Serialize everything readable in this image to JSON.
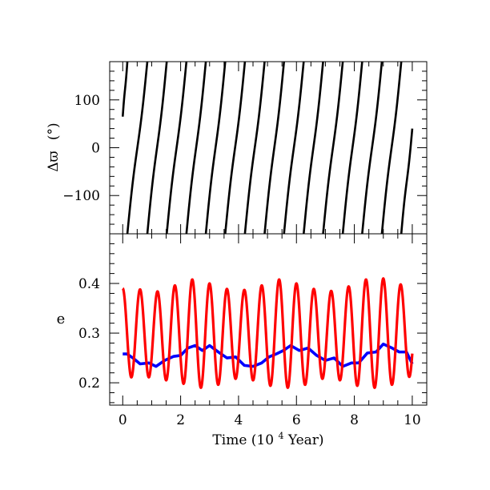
{
  "chart_data": [
    {
      "type": "line",
      "panel": "top",
      "ylabel": "Δϖ (°)",
      "ylabel_main": "Δϖ",
      "ylabel_unit": "(°)",
      "xlabel": "",
      "xlim": [
        -0.45,
        10.5
      ],
      "ylim": [
        -180,
        180
      ],
      "yticks": [
        -100,
        0,
        100
      ],
      "ytick_labels": [
        "−100",
        "0",
        "100"
      ],
      "grid": false,
      "line_color": "#000000",
      "series": [
        {
          "segments": [
            {
              "x": [
                0.0,
                0.16
              ],
              "y": [
                65,
                180
              ]
            },
            {
              "x": [
                0.16,
                0.85
              ],
              "y": [
                -180,
                180
              ]
            },
            {
              "x": [
                0.85,
                1.52
              ],
              "y": [
                -180,
                180
              ]
            },
            {
              "x": [
                1.52,
                2.2
              ],
              "y": [
                -180,
                180
              ]
            },
            {
              "x": [
                2.2,
                2.87
              ],
              "y": [
                -180,
                180
              ]
            },
            {
              "x": [
                2.87,
                3.54
              ],
              "y": [
                -180,
                180
              ]
            },
            {
              "x": [
                3.54,
                4.22
              ],
              "y": [
                -180,
                180
              ]
            },
            {
              "x": [
                4.22,
                4.9
              ],
              "y": [
                -180,
                180
              ]
            },
            {
              "x": [
                4.9,
                5.57
              ],
              "y": [
                -180,
                180
              ]
            },
            {
              "x": [
                5.57,
                6.25
              ],
              "y": [
                -180,
                180
              ]
            },
            {
              "x": [
                6.25,
                6.92
              ],
              "y": [
                -180,
                180
              ]
            },
            {
              "x": [
                6.92,
                7.6
              ],
              "y": [
                -180,
                180
              ]
            },
            {
              "x": [
                7.6,
                8.27
              ],
              "y": [
                -180,
                180
              ]
            },
            {
              "x": [
                8.27,
                8.95
              ],
              "y": [
                -180,
                180
              ]
            },
            {
              "x": [
                8.95,
                9.62
              ],
              "y": [
                -180,
                180
              ]
            },
            {
              "x": [
                9.62,
                10.0
              ],
              "y": [
                -180,
                40
              ]
            }
          ]
        }
      ]
    },
    {
      "type": "line",
      "panel": "bottom",
      "ylabel": "e",
      "xlabel": "Time (10⁴ Year)",
      "xlabel_prefix": "Time (10",
      "xlabel_exp": "4",
      "xlabel_suffix": " Year)",
      "xlim": [
        -0.45,
        10.5
      ],
      "ylim": [
        0.155,
        0.5
      ],
      "xticks": [
        0,
        2,
        4,
        6,
        8,
        10
      ],
      "xtick_labels": [
        "0",
        "2",
        "4",
        "6",
        "8",
        "10"
      ],
      "yticks": [
        0.2,
        0.3,
        0.4
      ],
      "ytick_labels": [
        "0.2",
        "0.3",
        "0.4"
      ],
      "grid": false,
      "series": [
        {
          "color": "#ff0000",
          "model": "oscillation",
          "period": 0.6,
          "phase": 0.25,
          "x_start": 0,
          "x_end": 10,
          "envelope_x": [
            0.0,
            0.5,
            1.0,
            1.5,
            2.0,
            2.5,
            3.0,
            3.5,
            4.0,
            4.5,
            5.0,
            5.5,
            6.0,
            6.5,
            7.0,
            7.5,
            8.0,
            8.5,
            9.0,
            9.5,
            10.0
          ],
          "max": [
            0.39,
            0.39,
            0.38,
            0.39,
            0.4,
            0.41,
            0.4,
            0.39,
            0.385,
            0.39,
            0.4,
            0.41,
            0.4,
            0.39,
            0.385,
            0.385,
            0.4,
            0.41,
            0.41,
            0.4,
            0.39
          ],
          "min": [
            0.205,
            0.215,
            0.21,
            0.205,
            0.2,
            0.19,
            0.19,
            0.2,
            0.21,
            0.205,
            0.195,
            0.19,
            0.19,
            0.2,
            0.21,
            0.205,
            0.195,
            0.19,
            0.19,
            0.2,
            0.215
          ]
        },
        {
          "color": "#0000ff",
          "name": "",
          "x": [
            0.0,
            0.15,
            0.35,
            0.6,
            0.9,
            1.15,
            1.45,
            1.75,
            2.0,
            2.25,
            2.5,
            2.75,
            3.0,
            3.3,
            3.6,
            3.9,
            4.2,
            4.5,
            4.8,
            5.05,
            5.3,
            5.55,
            5.8,
            6.1,
            6.4,
            6.7,
            7.0,
            7.3,
            7.6,
            7.9,
            8.15,
            8.45,
            8.75,
            9.0,
            9.3,
            9.55,
            9.8,
            10.0
          ],
          "y": [
            0.258,
            0.258,
            0.25,
            0.238,
            0.24,
            0.233,
            0.245,
            0.253,
            0.255,
            0.27,
            0.275,
            0.265,
            0.275,
            0.262,
            0.25,
            0.252,
            0.235,
            0.233,
            0.24,
            0.252,
            0.258,
            0.265,
            0.275,
            0.265,
            0.27,
            0.255,
            0.245,
            0.25,
            0.233,
            0.24,
            0.24,
            0.26,
            0.262,
            0.278,
            0.27,
            0.262,
            0.262,
            0.238
          ]
        }
      ]
    }
  ]
}
